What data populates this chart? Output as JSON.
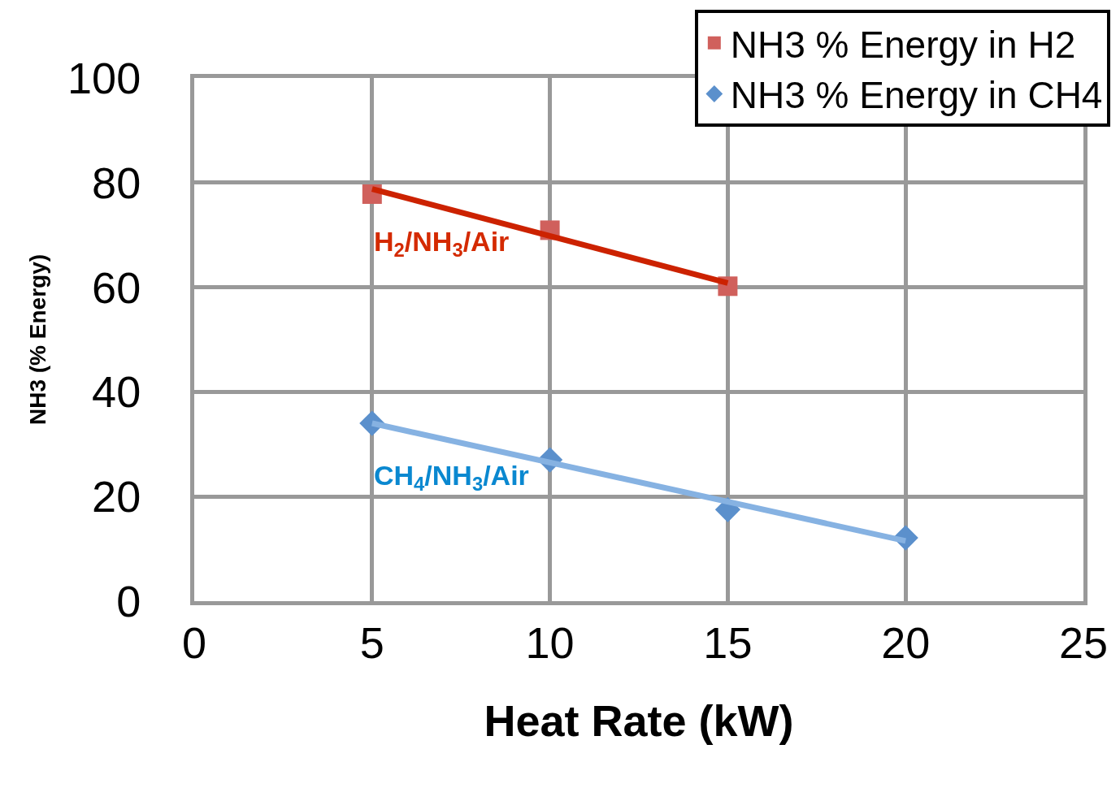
{
  "chart_data": {
    "type": "scatter",
    "xlabel": "Heat Rate (kW)",
    "ylabel": "NH3 (% Energy)",
    "xlim": [
      0,
      25
    ],
    "xticks": [
      0,
      5,
      10,
      15,
      20,
      25
    ],
    "ylim": [
      0,
      100
    ],
    "yticks": [
      0,
      20,
      40,
      60,
      80,
      100
    ],
    "grid": true,
    "legend": "top right",
    "series": [
      {
        "name": "NH3 % Energy in H2",
        "marker": "square",
        "color": "#d0605c",
        "x": [
          5,
          10,
          15
        ],
        "values": [
          77.8,
          70.9,
          60.2
        ]
      },
      {
        "name": "NH3 % Energy in CH4",
        "marker": "diamond",
        "color": "#5b90cc",
        "x": [
          5,
          10,
          15,
          20
        ],
        "values": [
          34,
          27,
          17.5,
          12.1
        ]
      },
      {
        "type": "line",
        "marker": "none",
        "color": "#cc2200",
        "x": [
          5,
          15
        ],
        "values": [
          78.8,
          60.8
        ]
      },
      {
        "type": "line",
        "marker": "none",
        "color": "#86b2e2",
        "x": [
          5,
          20
        ],
        "values": [
          34,
          11.5
        ]
      }
    ],
    "annotations": [
      "H$_{2}$/NH$_{3}$/Air",
      "CH$_{4}$/NH$_{3}$/Air"
    ]
  }
}
